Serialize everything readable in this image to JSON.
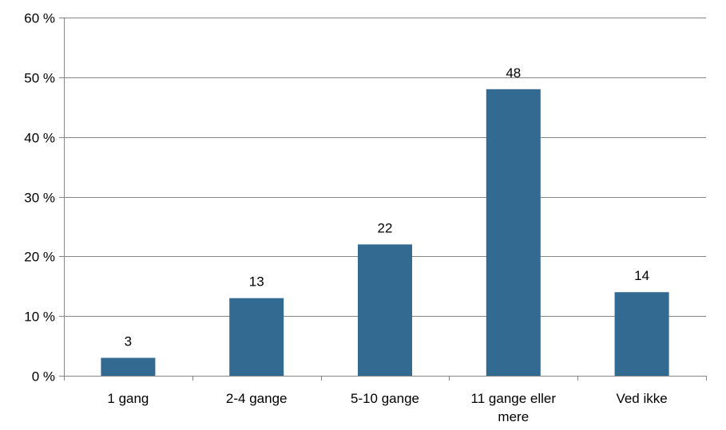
{
  "chart_data": {
    "type": "bar",
    "categories": [
      [
        "1 gang"
      ],
      [
        "2-4 gange"
      ],
      [
        "5-10 gange"
      ],
      [
        "11 gange eller",
        "mere"
      ],
      [
        "Ved ikke"
      ]
    ],
    "values": [
      3,
      13,
      22,
      48,
      14
    ],
    "data_labels": [
      "3",
      "13",
      "22",
      "48",
      "14"
    ],
    "y_ticks": [
      "0 %",
      "10 %",
      "20 %",
      "30 %",
      "40 %",
      "50 %",
      "60 %"
    ],
    "y_tick_values": [
      0,
      10,
      20,
      30,
      40,
      50,
      60
    ],
    "ylim": [
      0,
      60
    ],
    "grid": true,
    "legend": "none",
    "bar_color": "#336a92",
    "grid_color": "#878787",
    "axis_color": "#878787"
  }
}
